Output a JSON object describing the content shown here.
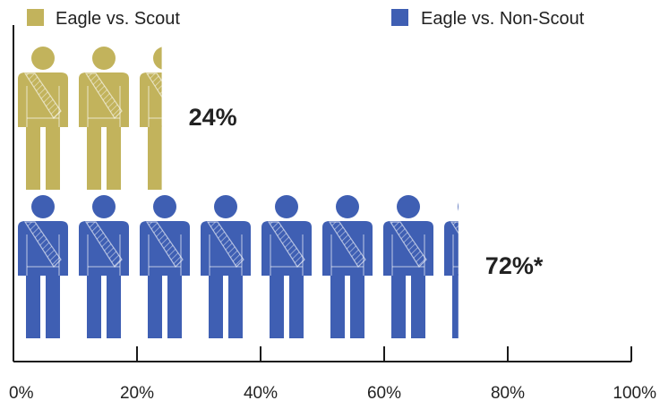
{
  "chart_data": {
    "type": "bar",
    "orientation": "horizontal",
    "glyph": "scout-figure-icon",
    "series": [
      {
        "name": "Eagle vs. Scout",
        "value": 24,
        "label": "24%",
        "color": "#c2b35c"
      },
      {
        "name": "Eagle vs. Non-Scout",
        "value": 72,
        "label": "72%*",
        "color": "#3f5fb3"
      }
    ],
    "xlim": [
      0,
      100
    ],
    "x_ticks": [
      "0%",
      "20%",
      "40%",
      "60%",
      "80%",
      "100%"
    ],
    "legend_position": "top",
    "grid": false
  }
}
